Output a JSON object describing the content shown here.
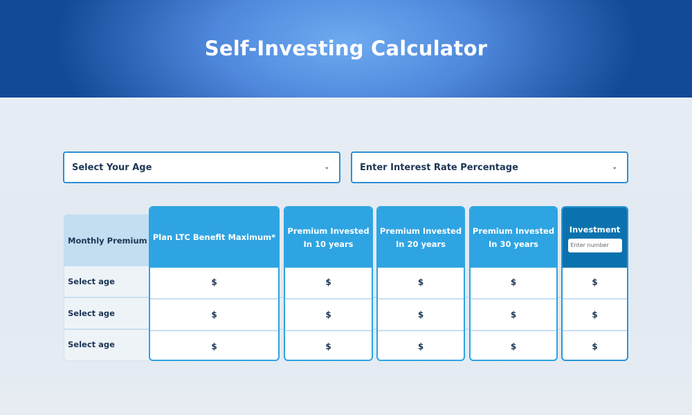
{
  "header": {
    "title": "Self-Investing Calculator"
  },
  "selects": {
    "age": "Select Your Age",
    "rate": "Enter Interest Rate Percentage"
  },
  "table": {
    "row_header": "Monthly Premium",
    "rows": [
      "Select age",
      "Select age",
      "Select age"
    ],
    "columns": [
      {
        "line1": "Plan LTC Benefit Maximum*",
        "line2": ""
      },
      {
        "line1": "Premium Invested",
        "line2": "In 10 years"
      },
      {
        "line1": "Premium Invested",
        "line2": "In 20 years"
      },
      {
        "line1": "Premium Invested",
        "line2": "In 30 years"
      },
      {
        "line1": "Investment",
        "line2": ""
      }
    ],
    "investment_placeholder": "Enter number",
    "cell_value": "$"
  },
  "colors": {
    "accent": "#2ea4e2",
    "dark_accent": "#0a72ae",
    "text": "#1c3554"
  }
}
